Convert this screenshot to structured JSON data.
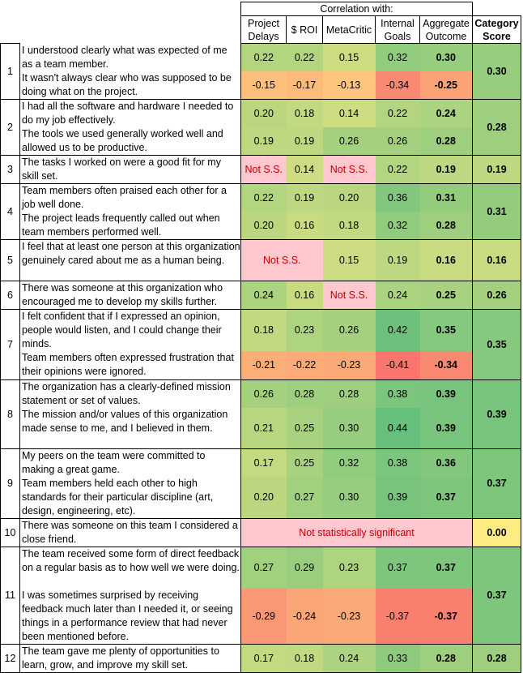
{
  "header": {
    "group_label": "Correlation with:",
    "columns": [
      "Project Delays",
      "$ ROI",
      "MetaCritic",
      "Internal Goals",
      "Aggregate Outcome"
    ],
    "category_label": "Category Score"
  },
  "not_ss_label": "Not S.S.",
  "colors": {
    "low": "#f8696b",
    "mid": "#ffeb84",
    "high": "#63be7b",
    "not_ss_bg": "#ffc7ce",
    "not_ss_text": "#c00000"
  },
  "categories": [
    {
      "num": "1",
      "score": "0.30",
      "items": [
        {
          "text": "I understood clearly what was expected of me as a team member.",
          "values": [
            "0.22",
            "0.22",
            "0.15",
            "0.32",
            "0.30"
          ]
        },
        {
          "text": "It wasn't always clear who was supposed to be doing what on the project.",
          "values": [
            "-0.15",
            "-0.17",
            "-0.13",
            "-0.34",
            "-0.25"
          ]
        }
      ]
    },
    {
      "num": "2",
      "score": "0.28",
      "items": [
        {
          "text": "I had all the software and hardware I needed to do my job effectively.",
          "values": [
            "0.20",
            "0.18",
            "0.14",
            "0.22",
            "0.24"
          ]
        },
        {
          "text": "The tools we used generally worked well and allowed us to be productive.",
          "values": [
            "0.19",
            "0.19",
            "0.26",
            "0.26",
            "0.28"
          ]
        }
      ]
    },
    {
      "num": "3",
      "score": "0.19",
      "items": [
        {
          "text": "The tasks I worked on were a good fit for my skill set.",
          "values": [
            "Not S.S.",
            "0.14",
            "Not S.S.",
            "0.22",
            "0.19"
          ]
        }
      ]
    },
    {
      "num": "4",
      "score": "0.31",
      "items": [
        {
          "text": "Team members often praised each other for a job well done.",
          "values": [
            "0.22",
            "0.19",
            "0.20",
            "0.36",
            "0.31"
          ]
        },
        {
          "text": "The project leads frequently called out when team members performed well.",
          "values": [
            "0.20",
            "0.16",
            "0.18",
            "0.32",
            "0.28"
          ]
        }
      ]
    },
    {
      "num": "5",
      "score": "0.16",
      "items": [
        {
          "text": "I feel that at least one person at this organization genuinely cared about me as a human being.",
          "values": [
            "Not S.S.",
            "Not S.S.",
            "0.15",
            "0.19",
            "0.16"
          ]
        }
      ]
    },
    {
      "num": "6",
      "score": "0.26",
      "items": [
        {
          "text": "There was someone at this organization who encouraged me to develop my skills further.",
          "values": [
            "0.24",
            "0.16",
            "Not S.S.",
            "0.24",
            "0.25"
          ]
        }
      ]
    },
    {
      "num": "7",
      "score": "0.35",
      "items": [
        {
          "text": "I felt confident that if I expressed an opinion, people would listen, and I could change their minds.",
          "values": [
            "0.18",
            "0.23",
            "0.26",
            "0.42",
            "0.35"
          ]
        },
        {
          "text": "Team members often expressed frustration that their opinions were ignored.",
          "values": [
            "-0.21",
            "-0.22",
            "-0.23",
            "-0.41",
            "-0.34"
          ]
        }
      ]
    },
    {
      "num": "8",
      "score": "0.39",
      "items": [
        {
          "text": "The organization has a clearly-defined mission statement or set of values.",
          "values": [
            "0.26",
            "0.28",
            "0.28",
            "0.38",
            "0.39"
          ]
        },
        {
          "text": "The mission and/or values of this organization made sense to me, and I believed in them.",
          "values": [
            "0.21",
            "0.25",
            "0.30",
            "0.44",
            "0.39"
          ]
        }
      ]
    },
    {
      "num": "9",
      "score": "0.37",
      "items": [
        {
          "text": "My peers on the team were committed to making a great game.",
          "values": [
            "0.17",
            "0.25",
            "0.32",
            "0.38",
            "0.36"
          ]
        },
        {
          "text": "Team members held each other to high standards for their particular discipline (art, design, engineering, etc).",
          "values": [
            "0.20",
            "0.27",
            "0.30",
            "0.39",
            "0.37"
          ]
        }
      ]
    },
    {
      "num": "10",
      "score": "0.00",
      "items": [
        {
          "text": "There was someone on this team I considered a close friend.",
          "note": "Not statistically significant"
        }
      ]
    },
    {
      "num": "11",
      "score": "0.37",
      "items": [
        {
          "text": "The team received some form of direct feedback on a regular basis as to how well we were doing.",
          "values": [
            "0.27",
            "0.29",
            "0.23",
            "0.37",
            "0.37"
          ]
        },
        {
          "text": "I was sometimes surprised by receiving feedback much later than I needed it, or seeing things in a performance review that had never been mentioned before.",
          "values": [
            "-0.29",
            "-0.24",
            "-0.23",
            "-0.37",
            "-0.37"
          ]
        }
      ]
    },
    {
      "num": "12",
      "score": "0.28",
      "items": [
        {
          "text": "The team gave me plenty of opportunities to learn, grow, and improve my skill set.",
          "values": [
            "0.17",
            "0.18",
            "0.24",
            "0.33",
            "0.28"
          ]
        }
      ]
    }
  ]
}
